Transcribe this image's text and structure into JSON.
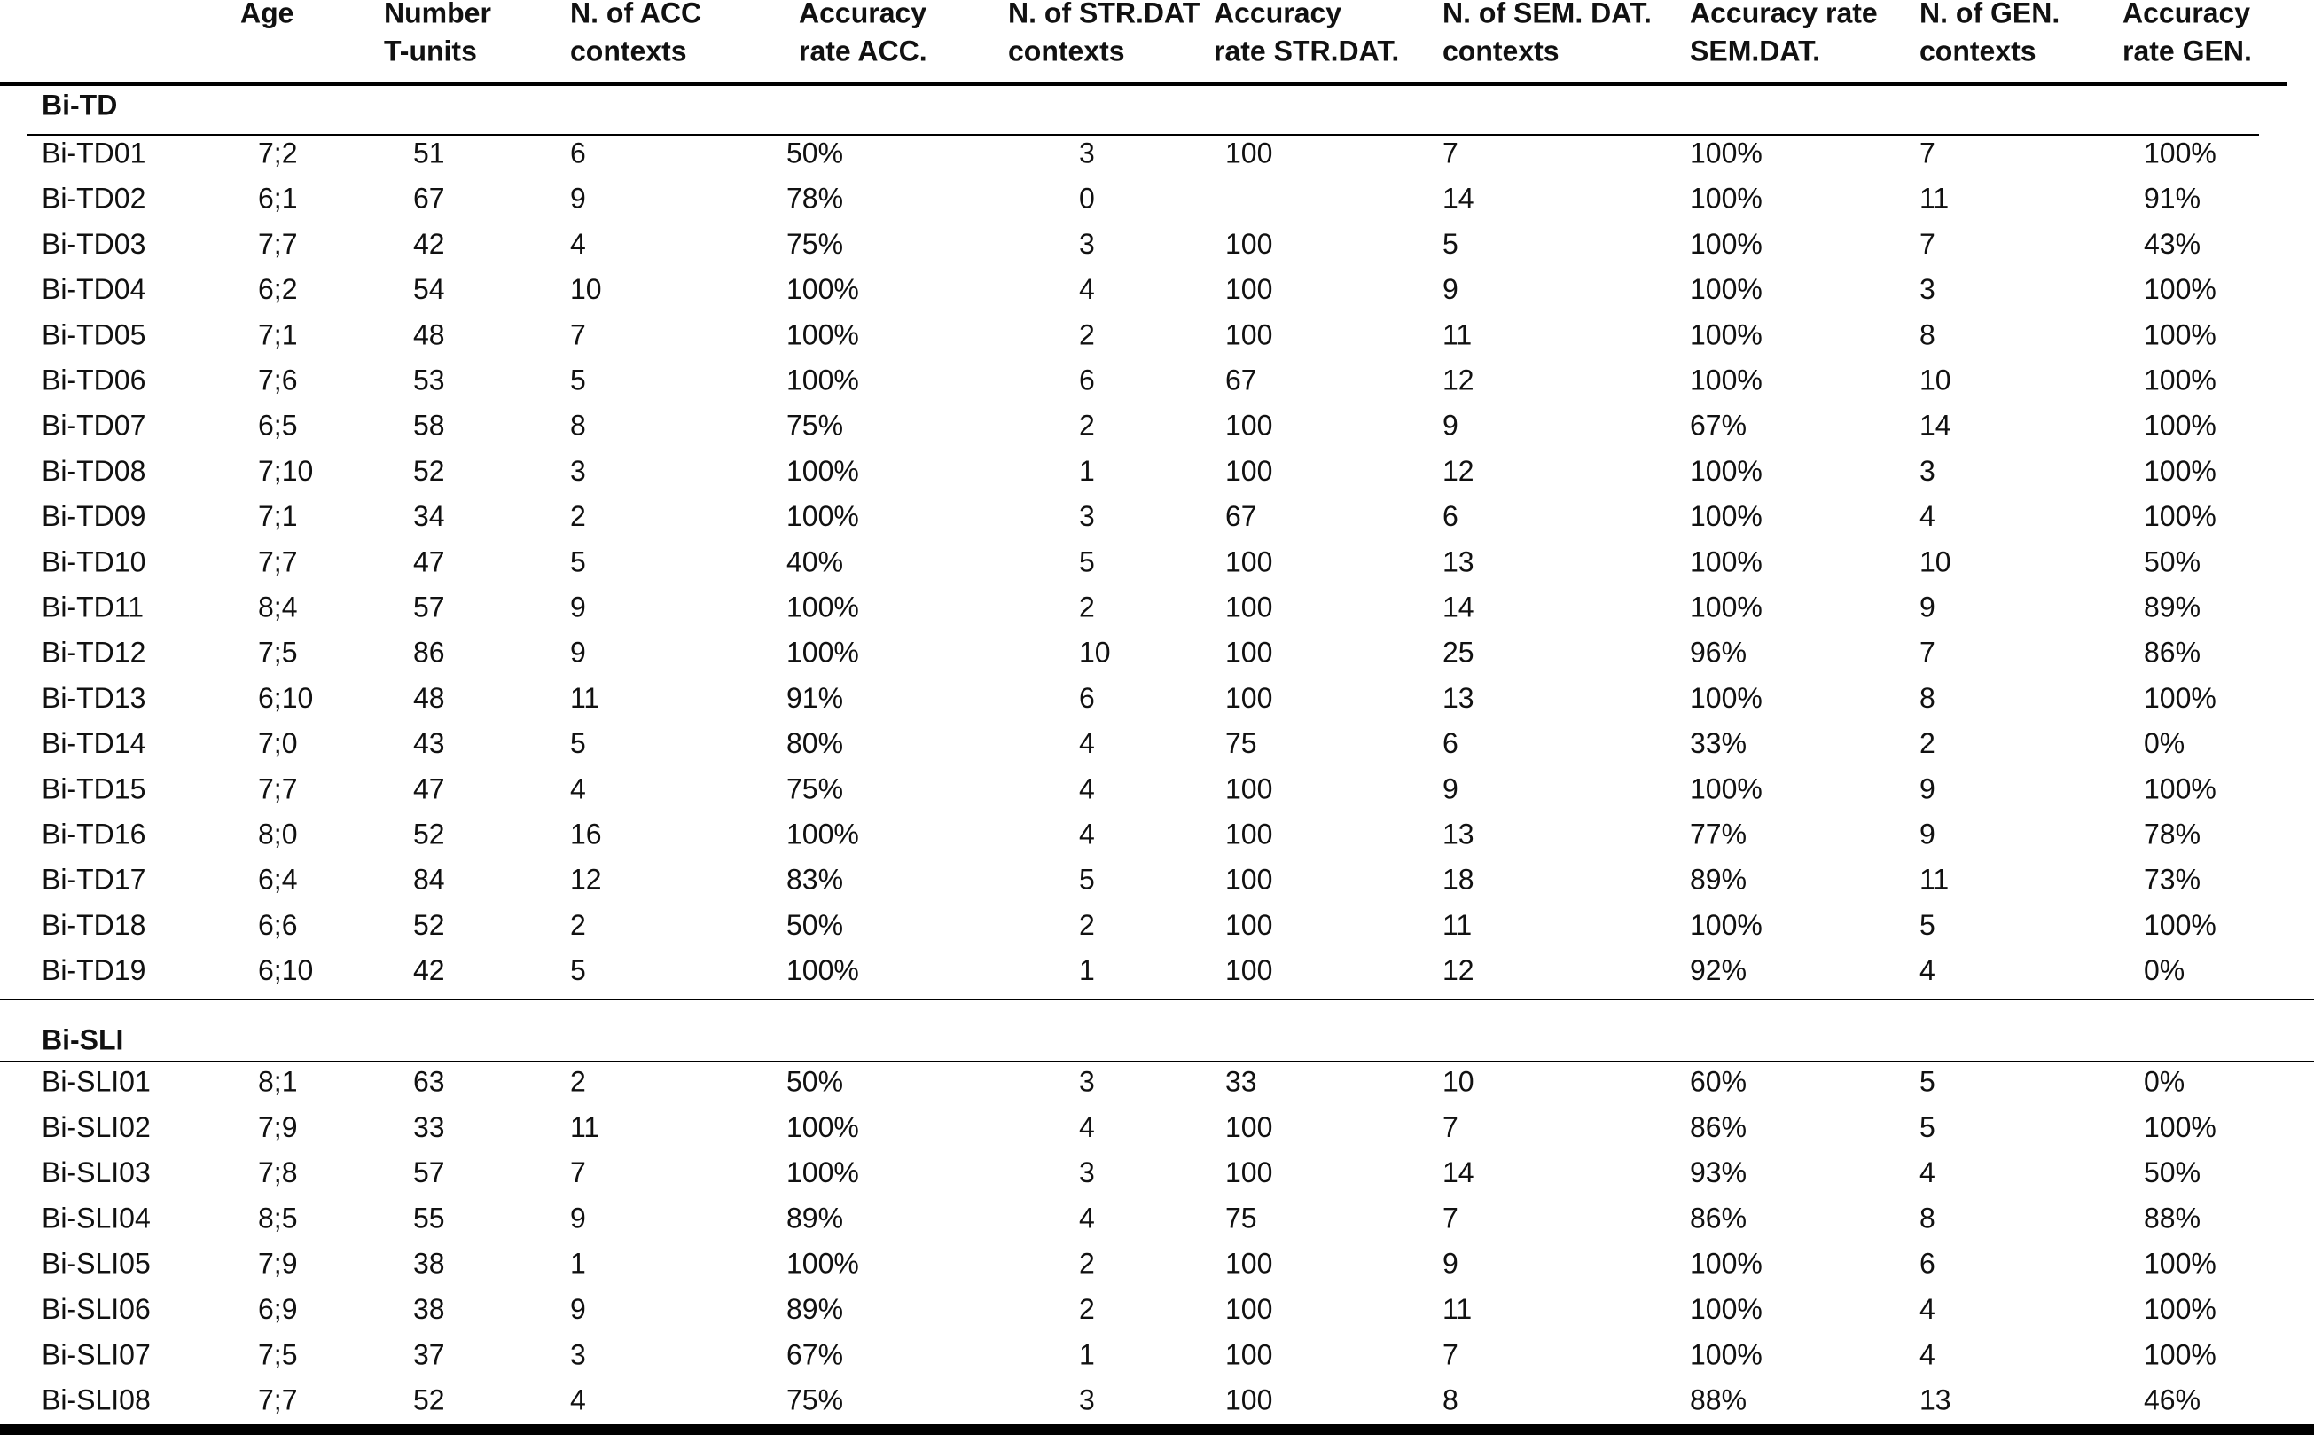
{
  "table": {
    "header": [
      [
        "Age"
      ],
      [
        "Number",
        "T-units"
      ],
      [
        "N. of ACC",
        "contexts"
      ],
      [
        "Accuracy",
        "rate ACC."
      ],
      [
        "N. of STR.DAT",
        "contexts"
      ],
      [
        "Accuracy",
        "rate STR.DAT."
      ],
      [
        "N. of SEM. DAT.",
        "contexts"
      ],
      [
        "Accuracy  rate",
        "SEM.DAT."
      ],
      [
        "N. of GEN.",
        "contexts"
      ],
      [
        "Accuracy",
        "rate GEN."
      ]
    ],
    "groups": [
      {
        "label": "Bi-TD",
        "rows": [
          [
            "Bi-TD01",
            "7;2",
            "51",
            "6",
            "50%",
            "3",
            "100",
            "7",
            "100%",
            "7",
            "100%"
          ],
          [
            "Bi-TD02",
            "6;1",
            "67",
            "9",
            "78%",
            "0",
            null,
            "14",
            "100%",
            "11",
            "91%"
          ],
          [
            "Bi-TD03",
            "7;7",
            "42",
            "4",
            "75%",
            "3",
            "100",
            "5",
            "100%",
            "7",
            "43%"
          ],
          [
            "Bi-TD04",
            "6;2",
            "54",
            "10",
            "100%",
            "4",
            "100",
            "9",
            "100%",
            "3",
            "100%"
          ],
          [
            "Bi-TD05",
            "7;1",
            "48",
            "7",
            "100%",
            "2",
            "100",
            "11",
            "100%",
            "8",
            "100%"
          ],
          [
            "Bi-TD06",
            "7;6",
            "53",
            "5",
            "100%",
            "6",
            "67",
            "12",
            "100%",
            "10",
            "100%"
          ],
          [
            "Bi-TD07",
            "6;5",
            "58",
            "8",
            "75%",
            "2",
            "100",
            "9",
            "67%",
            "14",
            "100%"
          ],
          [
            "Bi-TD08",
            "7;10",
            "52",
            "3",
            "100%",
            "1",
            "100",
            "12",
            "100%",
            "3",
            "100%"
          ],
          [
            "Bi-TD09",
            "7;1",
            "34",
            "2",
            "100%",
            "3",
            "67",
            "6",
            "100%",
            "4",
            "100%"
          ],
          [
            "Bi-TD10",
            "7;7",
            "47",
            "5",
            "40%",
            "5",
            "100",
            "13",
            "100%",
            "10",
            "50%"
          ],
          [
            "Bi-TD11",
            "8;4",
            "57",
            "9",
            "100%",
            "2",
            "100",
            "14",
            "100%",
            "9",
            "89%"
          ],
          [
            "Bi-TD12",
            "7;5",
            "86",
            "9",
            "100%",
            "10",
            "100",
            "25",
            "96%",
            "7",
            "86%"
          ],
          [
            "Bi-TD13",
            "6;10",
            "48",
            "11",
            "91%",
            "6",
            "100",
            "13",
            "100%",
            "8",
            "100%"
          ],
          [
            "Bi-TD14",
            "7;0",
            "43",
            "5",
            "80%",
            "4",
            "75",
            "6",
            "33%",
            "2",
            "0%"
          ],
          [
            "Bi-TD15",
            "7;7",
            "47",
            "4",
            "75%",
            "4",
            "100",
            "9",
            "100%",
            "9",
            "100%"
          ],
          [
            "Bi-TD16",
            "8;0",
            "52",
            "16",
            "100%",
            "4",
            "100",
            "13",
            "77%",
            "9",
            "78%"
          ],
          [
            "Bi-TD17",
            "6;4",
            "84",
            "12",
            "83%",
            "5",
            "100",
            "18",
            "89%",
            "11",
            "73%"
          ],
          [
            "Bi-TD18",
            "6;6",
            "52",
            "2",
            "50%",
            "2",
            "100",
            "11",
            "100%",
            "5",
            "100%"
          ],
          [
            "Bi-TD19",
            "6;10",
            "42",
            "5",
            "100%",
            "1",
            "100",
            "12",
            "92%",
            "4",
            "0%"
          ]
        ]
      },
      {
        "label": "Bi-SLI",
        "rows": [
          [
            "Bi-SLI01",
            "8;1",
            "63",
            "2",
            "50%",
            "3",
            "33",
            "10",
            "60%",
            "5",
            "0%"
          ],
          [
            "Bi-SLI02",
            "7;9",
            "33",
            "11",
            "100%",
            "4",
            "100",
            "7",
            "86%",
            "5",
            "100%"
          ],
          [
            "Bi-SLI03",
            "7;8",
            "57",
            "7",
            "100%",
            "3",
            "100",
            "14",
            "93%",
            "4",
            "50%"
          ],
          [
            "Bi-SLI04",
            "8;5",
            "55",
            "9",
            "89%",
            "4",
            "75",
            "7",
            "86%",
            "8",
            "88%"
          ],
          [
            "Bi-SLI05",
            "7;9",
            "38",
            "1",
            "100%",
            "2",
            "100",
            "9",
            "100%",
            "6",
            "100%"
          ],
          [
            "Bi-SLI06",
            "6;9",
            "38",
            "9",
            "89%",
            "2",
            "100",
            "11",
            "100%",
            "4",
            "100%"
          ],
          [
            "Bi-SLI07",
            "7;5",
            "37",
            "3",
            "67%",
            "1",
            "100",
            "7",
            "100%",
            "4",
            "100%"
          ],
          [
            "Bi-SLI08",
            "7;7",
            "52",
            "4",
            "75%",
            "3",
            "100",
            "8",
            "88%",
            "13",
            "46%"
          ]
        ]
      }
    ]
  }
}
